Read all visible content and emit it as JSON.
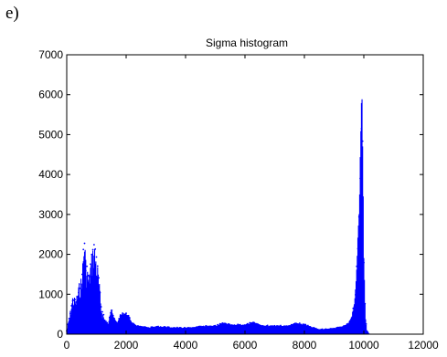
{
  "panel_label": "e)",
  "chart_data": {
    "type": "bar",
    "title": "Sigma histogram",
    "xlabel": "",
    "ylabel": "",
    "xlim": [
      0,
      12000
    ],
    "ylim": [
      0,
      7000
    ],
    "xticks": [
      "0",
      "2000",
      "4000",
      "6000",
      "8000",
      "10000",
      "12000"
    ],
    "yticks": [
      "0",
      "1000",
      "2000",
      "3000",
      "4000",
      "5000",
      "6000",
      "7000"
    ],
    "grid": false,
    "legend": "none",
    "series_color": "#0000ff",
    "bins": {
      "x": [
        0,
        100,
        200,
        300,
        350,
        400,
        500,
        550,
        600,
        650,
        700,
        750,
        800,
        850,
        900,
        950,
        1000,
        1050,
        1100,
        1150,
        1200,
        1300,
        1400,
        1500,
        1600,
        1700,
        1800,
        1900,
        2000,
        2100,
        2200,
        2300,
        2400,
        2600,
        2800,
        3000,
        3500,
        4000,
        4500,
        5000,
        5300,
        5500,
        6000,
        6300,
        6500,
        7000,
        7500,
        7700,
        8000,
        8500,
        9000,
        9300,
        9500,
        9600,
        9700,
        9750,
        9800,
        9850,
        9900,
        9920,
        9950,
        10000,
        10050,
        10100,
        10200
      ],
      "y": [
        100,
        500,
        1000,
        900,
        1050,
        1250,
        1500,
        2000,
        2700,
        1800,
        1700,
        1500,
        1900,
        2100,
        2400,
        2300,
        2000,
        1700,
        1300,
        800,
        600,
        350,
        250,
        700,
        400,
        300,
        500,
        550,
        550,
        450,
        300,
        250,
        220,
        200,
        170,
        200,
        180,
        160,
        200,
        220,
        300,
        250,
        250,
        320,
        230,
        220,
        220,
        300,
        250,
        120,
        150,
        200,
        300,
        500,
        900,
        1500,
        2600,
        3600,
        5200,
        6300,
        6000,
        2000,
        500,
        100,
        0
      ]
    }
  }
}
